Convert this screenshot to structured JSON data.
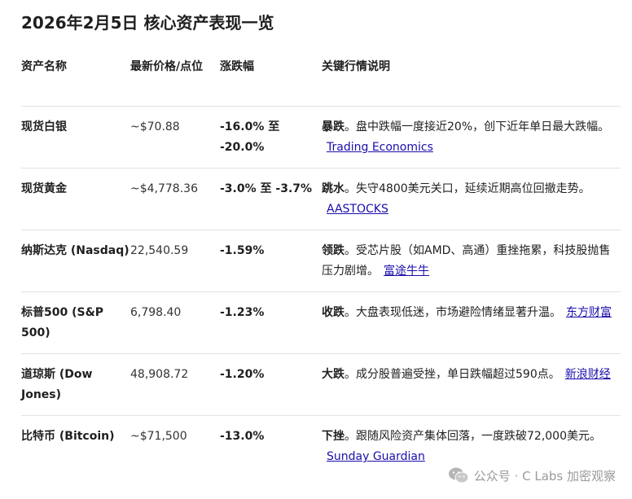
{
  "title": "2026年2月5日 核心资产表现一览",
  "table": {
    "headers": [
      "资产名称",
      "最新价格/点位",
      "涨跌幅",
      "关键行情说明"
    ],
    "rows": [
      {
        "name": "现货白银",
        "price": "~$70.88",
        "change": "-16.0% 至 -20.0%",
        "lead": "暴跌",
        "desc": "。盘中跌幅一度接近20%，创下近年单日最大跌幅。",
        "source": "Trading Economics"
      },
      {
        "name": "现货黄金",
        "price": "~$4,778.36",
        "change": "-3.0% 至 -3.7%",
        "lead": "跳水",
        "desc": "。失守4800美元关口，延续近期高位回撤走势。",
        "source": "AASTOCKS"
      },
      {
        "name": "纳斯达克 (Nasdaq)",
        "price": "22,540.59",
        "change": "-1.59%",
        "lead": "领跌",
        "desc": "。受芯片股（如AMD、高通）重挫拖累，科技股抛售压力剧增。",
        "source": "富途牛牛"
      },
      {
        "name": "标普500 (S&P 500)",
        "price": "6,798.40",
        "change": "-1.23%",
        "lead": "收跌",
        "desc": "。大盘表现低迷，市场避险情绪显著升温。",
        "source": "东方财富"
      },
      {
        "name": "道琼斯 (Dow Jones)",
        "price": "48,908.72",
        "change": "-1.20%",
        "lead": "大跌",
        "desc": "。成分股普遍受挫，单日跌幅超过590点。",
        "source": "新浪财经"
      },
      {
        "name": "比特币 (Bitcoin)",
        "price": "~$71,500",
        "change": "-13.0%",
        "lead": "下挫",
        "desc": "。跟随风险资产集体回落，一度跌破72,000美元。",
        "source": "Sunday Guardian"
      }
    ]
  },
  "watermark": {
    "text": "公众号 · C Labs 加密观察",
    "icon": "wechat-icon"
  }
}
